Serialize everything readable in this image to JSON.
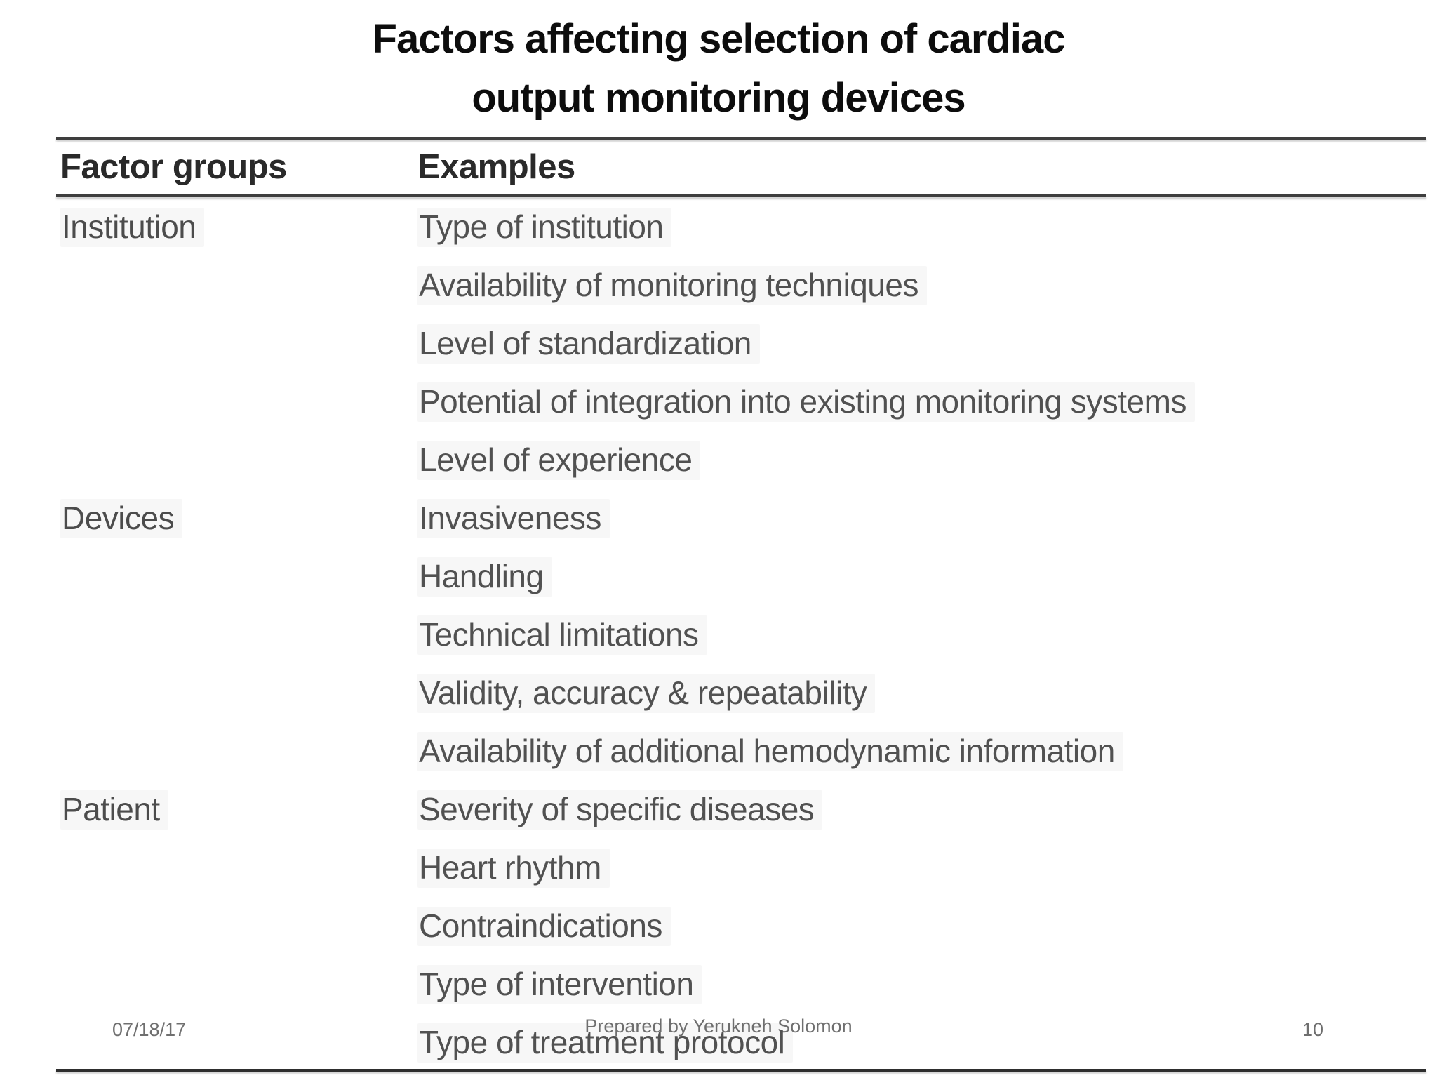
{
  "slide": {
    "title_line1": "Factors affecting selection of cardiac",
    "title_line2": "output monitoring devices"
  },
  "table": {
    "headers": [
      "Factor groups",
      "Examples"
    ],
    "groups": [
      {
        "name": "Institution",
        "examples": [
          "Type of institution",
          "Availability of monitoring techniques",
          "Level of standardization",
          "Potential of integration into existing monitoring systems",
          "Level of experience"
        ]
      },
      {
        "name": "Devices",
        "examples": [
          "Invasiveness",
          "Handling",
          "Technical limitations",
          "Validity, accuracy & repeatability",
          "Availability of additional hemodynamic information"
        ]
      },
      {
        "name": "Patient",
        "examples": [
          "Severity of specific diseases",
          "Heart rhythm",
          "Contraindications",
          "Type of intervention",
          "Type of treatment protocol"
        ]
      }
    ]
  },
  "footer": {
    "date": "07/18/17",
    "credit": "Prepared by Yerukneh Solomon",
    "page_number": "10"
  },
  "colors": {
    "title_text": "#0d0d0d",
    "header_text": "#2a2a2a",
    "body_text": "#515151",
    "rule": "#3e3e3e",
    "footer_text": "#6f6f6f",
    "background": "#ffffff"
  }
}
